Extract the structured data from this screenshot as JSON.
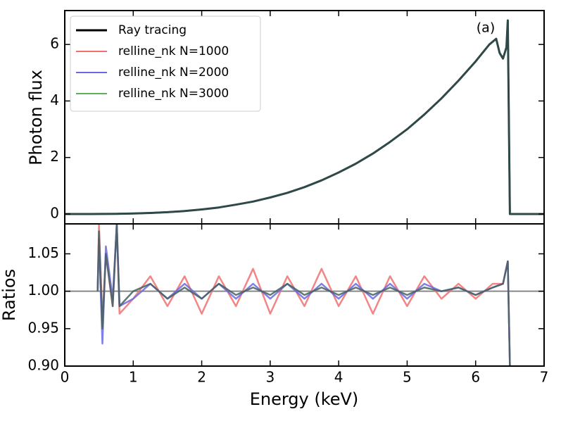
{
  "chart_data": [
    {
      "type": "line",
      "ylabel": "Photon flux",
      "annotation": "(a)",
      "legend": "upper left",
      "xlim": [
        0,
        7
      ],
      "xticks": [
        0,
        1,
        2,
        3,
        4,
        5,
        6,
        7
      ],
      "ylim": [
        -0.35,
        7.2
      ],
      "yticks": [
        0,
        2,
        4,
        6
      ],
      "x": [
        0,
        0.25,
        0.5,
        0.75,
        1,
        1.25,
        1.5,
        1.75,
        2,
        2.25,
        2.5,
        2.75,
        3,
        3.25,
        3.5,
        3.75,
        4,
        4.25,
        4.5,
        4.75,
        5,
        5.25,
        5.5,
        5.75,
        6,
        6.1,
        6.2,
        6.3,
        6.35,
        6.4,
        6.45,
        6.47,
        6.5,
        6.55,
        7
      ],
      "series": [
        {
          "name": "relline_nk N=1000",
          "color": "#f07070",
          "values": [
            0,
            0,
            0.002,
            0.007,
            0.017,
            0.036,
            0.064,
            0.104,
            0.16,
            0.23,
            0.33,
            0.44,
            0.585,
            0.75,
            0.95,
            1.19,
            1.47,
            1.78,
            2.14,
            2.55,
            3.0,
            3.52,
            4.09,
            4.72,
            5.4,
            5.7,
            6.0,
            6.2,
            5.7,
            5.5,
            5.9,
            6.85,
            0,
            0,
            0
          ]
        },
        {
          "name": "relline_nk N=2000",
          "color": "#6a6ae0",
          "values": [
            0,
            0,
            0.002,
            0.007,
            0.017,
            0.036,
            0.064,
            0.104,
            0.16,
            0.23,
            0.33,
            0.44,
            0.585,
            0.75,
            0.95,
            1.19,
            1.47,
            1.78,
            2.14,
            2.55,
            3.0,
            3.52,
            4.09,
            4.72,
            5.4,
            5.7,
            6.0,
            6.2,
            5.7,
            5.5,
            5.9,
            6.85,
            0,
            0,
            0
          ]
        },
        {
          "name": "relline_nk N=3000",
          "color": "#5fae5f",
          "values": [
            0,
            0,
            0.002,
            0.007,
            0.017,
            0.036,
            0.064,
            0.104,
            0.16,
            0.23,
            0.33,
            0.44,
            0.585,
            0.75,
            0.95,
            1.19,
            1.47,
            1.78,
            2.14,
            2.55,
            3.0,
            3.52,
            4.09,
            4.72,
            5.4,
            5.7,
            6.0,
            6.2,
            5.7,
            5.5,
            5.9,
            6.85,
            0,
            0,
            0
          ]
        },
        {
          "name": "Ray tracing",
          "color": "#000000",
          "values": [
            0,
            0,
            0.002,
            0.007,
            0.017,
            0.036,
            0.064,
            0.104,
            0.16,
            0.23,
            0.33,
            0.44,
            0.585,
            0.75,
            0.95,
            1.19,
            1.47,
            1.78,
            2.14,
            2.55,
            3.0,
            3.52,
            4.09,
            4.72,
            5.4,
            5.7,
            6.0,
            6.2,
            5.7,
            5.5,
            5.9,
            6.85,
            0,
            0,
            0
          ]
        }
      ]
    },
    {
      "type": "line",
      "xlabel": "Energy (keV)",
      "ylabel": "Ratios",
      "hline": 1.0,
      "xlim": [
        0,
        7
      ],
      "xticks": [
        0,
        1,
        2,
        3,
        4,
        5,
        6,
        7
      ],
      "ylim": [
        0.9,
        1.09
      ],
      "yticks": [
        {
          "value": 0.9,
          "label": "0.90"
        },
        {
          "value": 0.95,
          "label": "0.95"
        },
        {
          "value": 1.0,
          "label": "1.00"
        },
        {
          "value": 1.05,
          "label": "1.05"
        }
      ],
      "x": [
        0.48,
        0.5,
        0.55,
        0.6,
        0.7,
        0.76,
        0.8,
        1,
        1.25,
        1.5,
        1.75,
        2,
        2.25,
        2.5,
        2.75,
        3,
        3.25,
        3.5,
        3.75,
        4,
        4.25,
        4.5,
        4.75,
        5,
        5.25,
        5.5,
        5.75,
        6,
        6.25,
        6.4,
        6.47,
        6.5
      ],
      "series": [
        {
          "name": "relline_nk N=1000",
          "color": "#f07070",
          "values": [
            1.0,
            1.09,
            0.96,
            1.05,
            0.98,
            1.09,
            0.97,
            0.99,
            1.02,
            0.98,
            1.02,
            0.97,
            1.02,
            0.98,
            1.03,
            0.97,
            1.02,
            0.98,
            1.03,
            0.98,
            1.02,
            0.97,
            1.02,
            0.98,
            1.02,
            0.99,
            1.01,
            0.99,
            1.01,
            1.01,
            1.04,
            0.9
          ]
        },
        {
          "name": "relline_nk N=2000",
          "color": "#6a6ae0",
          "values": [
            1.0,
            1.07,
            0.93,
            1.06,
            0.99,
            1.09,
            0.98,
            0.99,
            1.01,
            0.99,
            1.01,
            0.99,
            1.01,
            0.99,
            1.01,
            0.99,
            1.01,
            0.99,
            1.01,
            0.99,
            1.01,
            0.99,
            1.01,
            0.99,
            1.01,
            1.0,
            1.005,
            0.995,
            1.005,
            1.01,
            1.04,
            0.9
          ]
        },
        {
          "name": "relline_nk N=3000",
          "color": "#466060",
          "values": [
            1.0,
            1.08,
            0.95,
            1.05,
            0.98,
            1.09,
            0.98,
            1.0,
            1.01,
            0.99,
            1.005,
            0.99,
            1.01,
            0.995,
            1.005,
            0.995,
            1.01,
            0.995,
            1.005,
            0.995,
            1.005,
            0.995,
            1.005,
            0.995,
            1.005,
            1.0,
            1.005,
            0.995,
            1.005,
            1.01,
            1.04,
            0.9
          ]
        }
      ]
    }
  ]
}
